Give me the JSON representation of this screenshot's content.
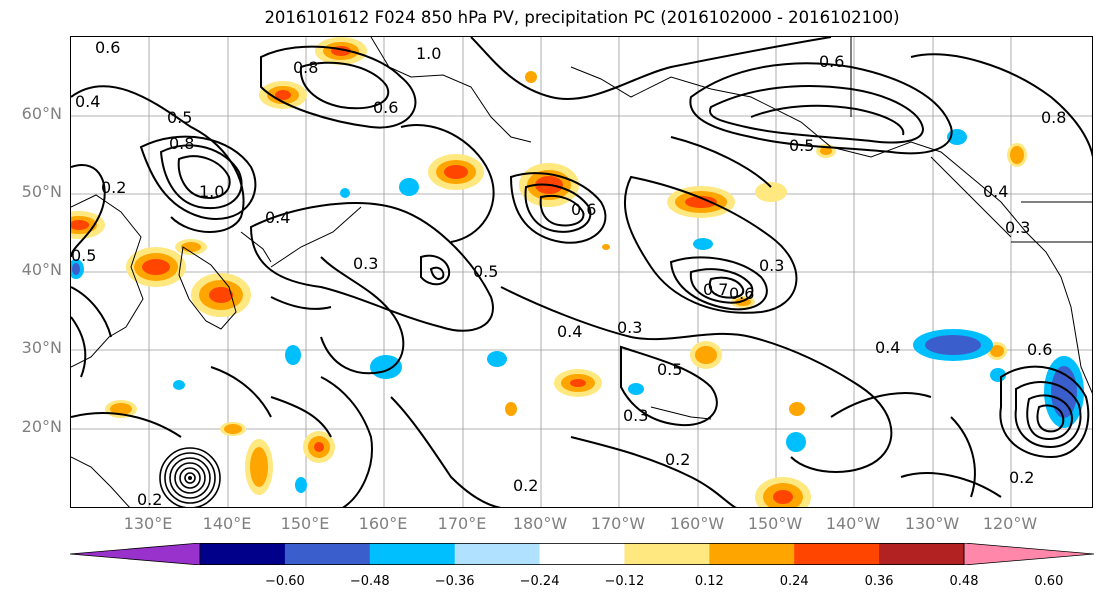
{
  "title": "2016101612 F024 850 hPa PV, precipitation PC (2016102000 - 2016102100)",
  "lat_labels": [
    "60°N",
    "50°N",
    "40°N",
    "30°N",
    "20°N"
  ],
  "lon_labels": [
    "130°E",
    "140°E",
    "150°E",
    "160°E",
    "170°E",
    "180°W",
    "170°W",
    "160°W",
    "150°W",
    "140°W",
    "130°W",
    "120°W"
  ],
  "contour_labels": [
    "0.6",
    "1.0",
    "0.8",
    "0.6",
    "0.4",
    "0.5",
    "0.8",
    "1.0",
    "0.2",
    "0.4",
    "0.5",
    "0.3",
    "0.5",
    "0.6",
    "0.7",
    "0.6",
    "0.3",
    "0.4",
    "0.3",
    "0.5",
    "0.3",
    "0.2",
    "0.2",
    "0.4",
    "0.6",
    "0.3",
    "0.2",
    "0.4",
    "0.5",
    "0.8",
    "0.2",
    "0.6"
  ],
  "colorbar": {
    "colors": [
      "#9932cc",
      "#00008b",
      "#3a5fcd",
      "#00bfff",
      "#b0e2ff",
      "#ffffff",
      "#ffe880",
      "#ffa500",
      "#ff4500",
      "#b22222",
      "#ff88aa"
    ],
    "tick_labels": [
      "−0.60",
      "−0.48",
      "−0.36",
      "−0.24",
      "−0.12",
      "0.12",
      "0.24",
      "0.36",
      "0.48",
      "0.60"
    ]
  }
}
